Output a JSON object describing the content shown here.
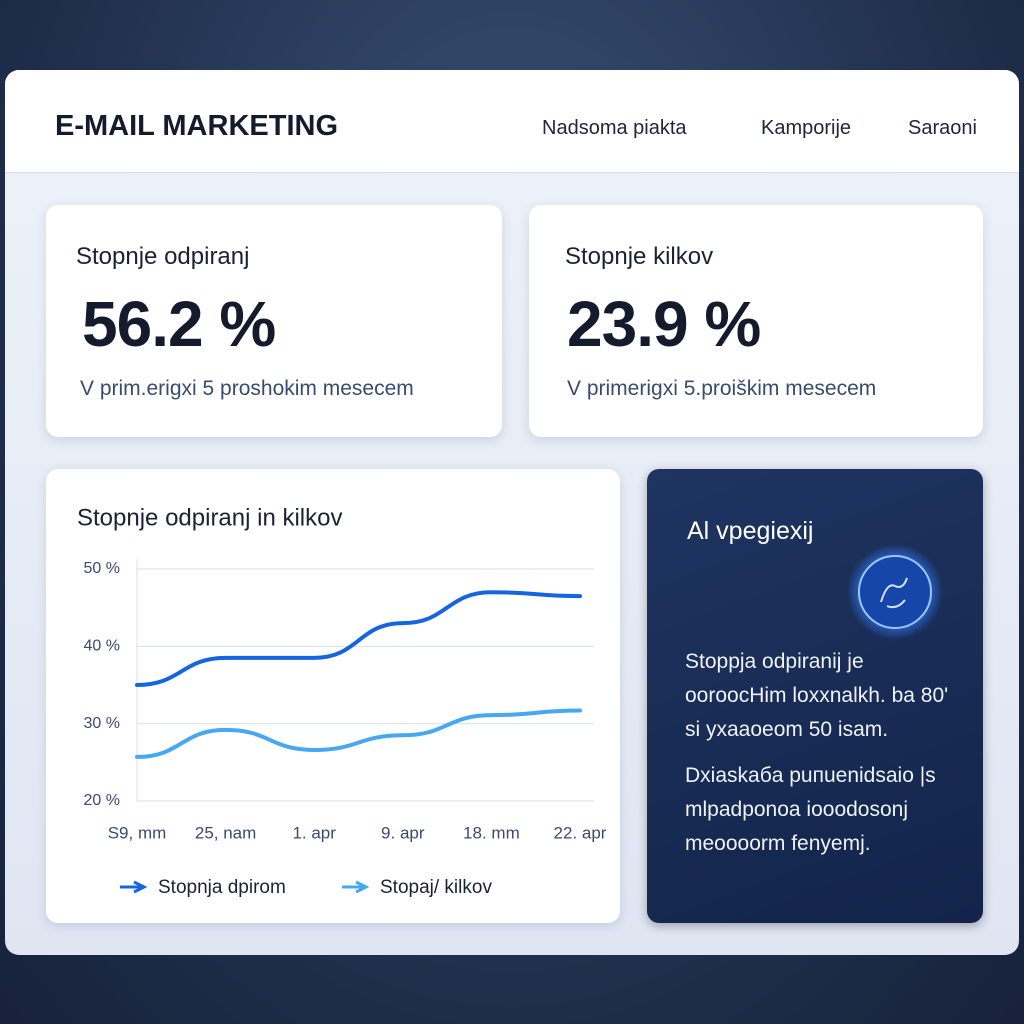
{
  "header": {
    "title": "E-MAIL MARKETING",
    "nav": [
      "Nadsoma piakta",
      "Kamporije",
      "Saraoni"
    ]
  },
  "cards": [
    {
      "label": "Stopnje odpiranj",
      "value": "56.2 %",
      "note": "V prim.erigxi 5 proshokim mesecem"
    },
    {
      "label": "Stopnje kilkov",
      "value": "23.9 %",
      "note": "V primerigxi 5.proiškim mesecem"
    }
  ],
  "chart_data": {
    "type": "line",
    "title": "Stopnje odpiranj in kilkov",
    "categories": [
      "S9, mm",
      "25, nam",
      "1. apr",
      "9. apr",
      "18. mm",
      "22. apr"
    ],
    "series": [
      {
        "name": "Stopnja dpirom",
        "color": "#1565e0",
        "values": [
          35,
          38.5,
          38.5,
          43,
          47,
          46.5
        ]
      },
      {
        "name": "Stopaj/ kilkov",
        "color": "#45a8f0",
        "values": [
          25.7,
          29.2,
          26.6,
          28.5,
          31.1,
          31.7
        ]
      }
    ],
    "ylim": [
      20,
      50
    ],
    "yticks": [
      {
        "value": 50,
        "label": "50 %"
      },
      {
        "value": 40,
        "label": "40 %"
      },
      {
        "value": 30,
        "label": "30 %"
      },
      {
        "value": 20,
        "label": "20 %"
      }
    ],
    "grid": true
  },
  "ai_panel": {
    "title": "Al vpegiexij",
    "paragraphs": [
      "Stoppja odpiranij je ooroocHim loxxnalkh. ba 80' si yxaaoeom 50 isam.",
      "Dxiaskaбa puпuenidsaio |s mlpadponoa iooodosonj meoooorm fenyemj."
    ]
  }
}
